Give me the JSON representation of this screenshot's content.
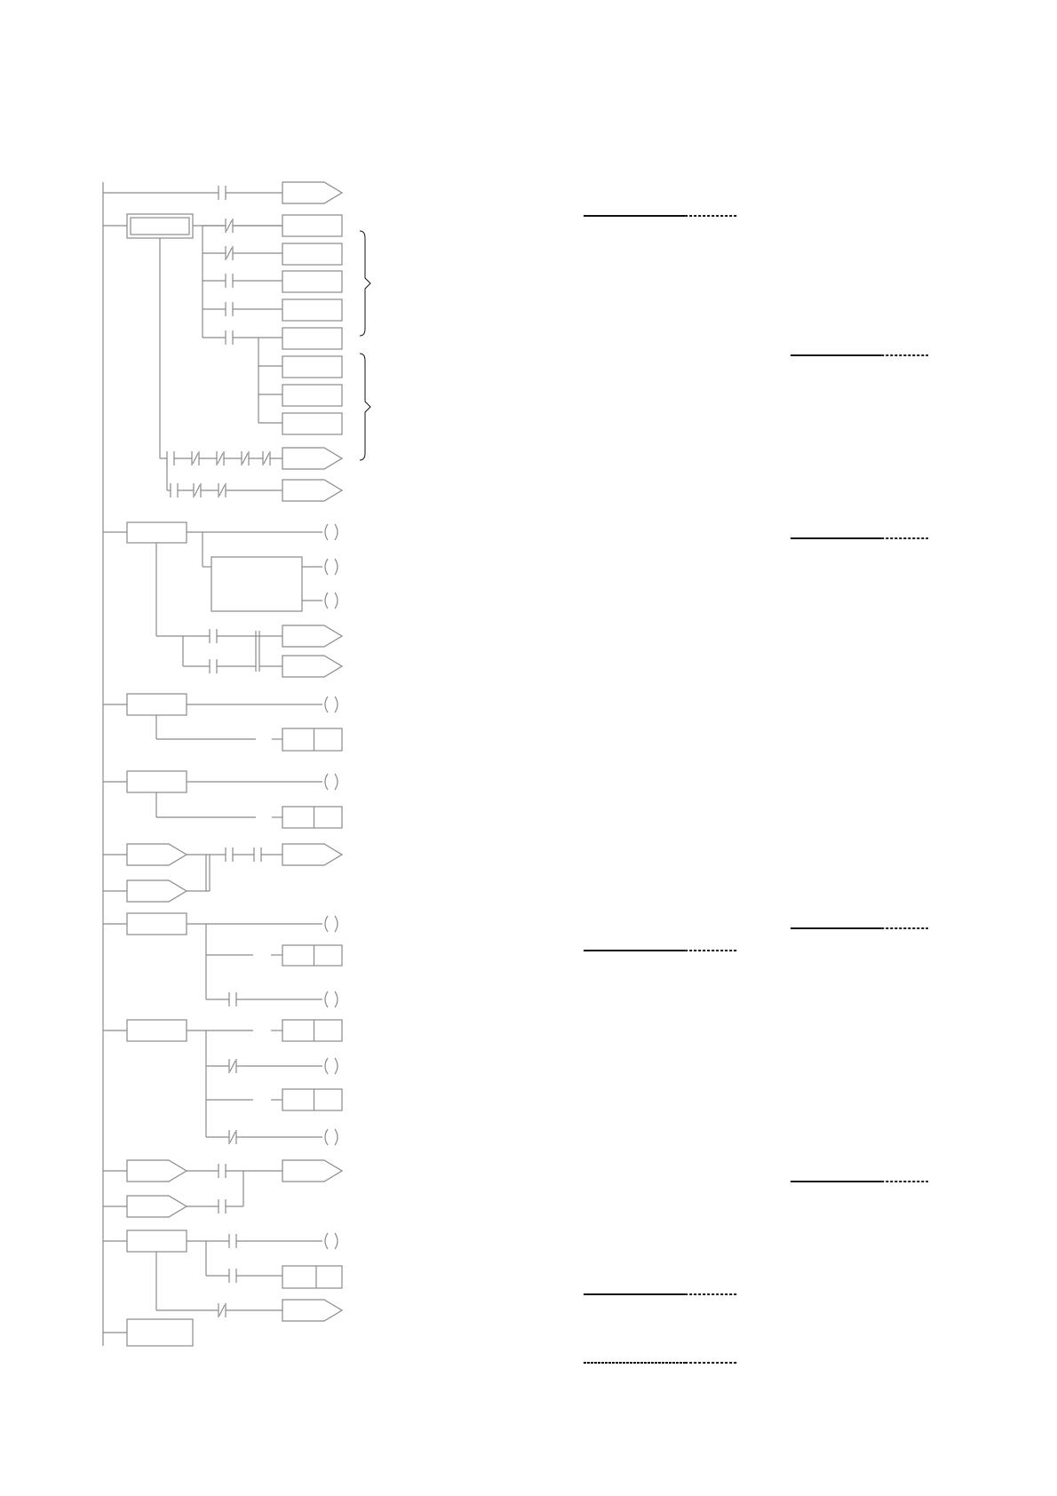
{
  "diagram": {
    "type": "ladder-logic",
    "colors": {
      "line": "#8a8a8a",
      "dark_line": "#111111",
      "background": "#ffffff"
    }
  }
}
